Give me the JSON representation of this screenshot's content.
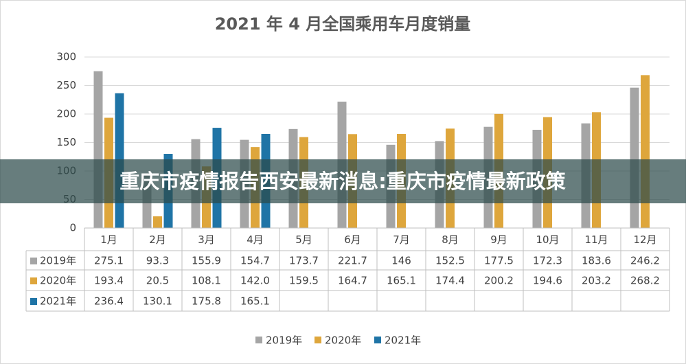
{
  "chart_data": {
    "type": "bar",
    "title": "2021 年 4 月全国乘用车月度销量",
    "overlay_text": "重庆市疫情报告西安最新消息:重庆市疫情最新政策",
    "categories": [
      "1月",
      "2月",
      "3月",
      "4月",
      "5月",
      "6月",
      "7月",
      "8月",
      "9月",
      "10月",
      "11月",
      "12月"
    ],
    "series": [
      {
        "name": "2019年",
        "color": "#a5a5a5",
        "values": [
          275.1,
          93.3,
          155.9,
          154.7,
          173.7,
          221.7,
          146,
          152.5,
          177.5,
          172.3,
          183.6,
          246.2
        ],
        "value_labels": [
          "275.1",
          "93.3",
          "155.9",
          "154.7",
          "173.7",
          "221.7",
          "146",
          "152.5",
          "177.5",
          "172.3",
          "183.6",
          "246.2"
        ]
      },
      {
        "name": "2020年",
        "color": "#dea63c",
        "values": [
          193.4,
          20.5,
          108.1,
          142.0,
          159.5,
          164.7,
          165.1,
          174.4,
          200.2,
          194.6,
          203.2,
          268.2
        ],
        "value_labels": [
          "193.4",
          "20.5",
          "108.1",
          "142.0",
          "159.5",
          "164.7",
          "165.1",
          "174.4",
          "200.2",
          "194.6",
          "203.2",
          "268.2"
        ]
      },
      {
        "name": "2021年",
        "color": "#1f74a6",
        "values": [
          236.4,
          130.1,
          175.8,
          165.1,
          null,
          null,
          null,
          null,
          null,
          null,
          null,
          null
        ],
        "value_labels": [
          "236.4",
          "130.1",
          "175.8",
          "165.1",
          null,
          null,
          null,
          null,
          null,
          null,
          null,
          null
        ]
      }
    ],
    "ylim": [
      0,
      300
    ],
    "yticks": [
      0,
      50,
      100,
      150,
      200,
      250,
      300
    ],
    "grid": true,
    "legend": "bottom"
  }
}
